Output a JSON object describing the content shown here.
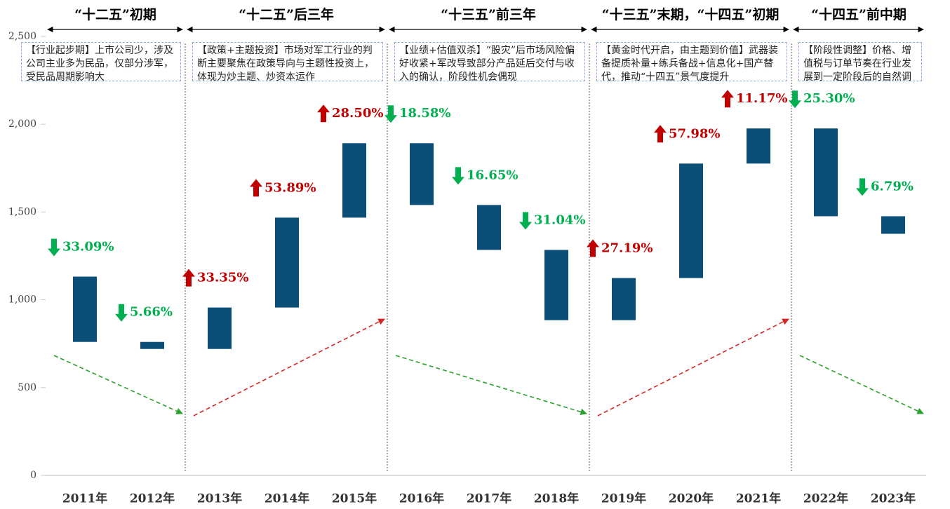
{
  "chart_data": {
    "type": "floating_bar",
    "color": "#0b4f79",
    "up_color": "#c00000",
    "down_color": "#00b050",
    "ylim": [
      0,
      2500
    ],
    "yticks": [
      0,
      500,
      {
        "value": 1000,
        "label": "1,000"
      },
      {
        "value": 1500,
        "label": "1,500"
      },
      {
        "value": 2000,
        "label": "2,000"
      },
      {
        "value": 2500,
        "label": "2,500"
      }
    ],
    "periods": [
      {
        "title": "“十二五”初期",
        "note": "【行业起步期】上市公司少，涉及公司主业多为民品，仅部分涉军，受民品周期影响大",
        "trend": "down",
        "categories": [
          "2011年",
          "2012年"
        ]
      },
      {
        "title": "“十二五”后三年",
        "note": "【政策+主题投资】市场对军工行业的判断主要聚焦在政策导向与主题性投资上，体现为炒主题、炒资本运作",
        "trend": "up",
        "categories": [
          "2013年",
          "2014年",
          "2015年"
        ]
      },
      {
        "title": "“十三五”前三年",
        "note": "【业绩+估值双杀】“股灾”后市场风险偏好收紧+军改导致部分产品延后交付与收入的确认，阶段性机会偶现",
        "trend": "down",
        "categories": [
          "2016年",
          "2017年",
          "2018年"
        ]
      },
      {
        "title": "“十三五”末期，“十四五”初期",
        "note": "【黄金时代开启，由主题到价值】武器装备提质补量+练兵备战+信息化+国产替代，推动“十四五”景气度提升",
        "trend": "up",
        "categories": [
          "2019年",
          "2020年",
          "2021年"
        ]
      },
      {
        "title": "“十四五”前中期",
        "note": "【阶段性调整】价格、增值税与订单节奏在行业发展到一定阶段后的自然调整",
        "trend": "down",
        "categories": [
          "2022年",
          "2023年"
        ]
      }
    ],
    "low": [
      760,
      720,
      720,
      956,
      1468,
      1540,
      1284,
      884,
      884,
      1124,
      1776,
      1476,
      1376
    ],
    "high": [
      1132,
      760,
      956,
      1468,
      1892,
      1892,
      1540,
      1284,
      1124,
      1776,
      1976,
      1976,
      1476
    ],
    "change_values": [
      33.09,
      5.66,
      33.35,
      53.89,
      28.5,
      18.58,
      16.65,
      31.04,
      27.19,
      57.98,
      11.17,
      25.3,
      6.79
    ],
    "change_labels": [
      "33.09%",
      "5.66%",
      "33.35%",
      "53.89%",
      "28.50%",
      "18.58%",
      "16.65%",
      "31.04%",
      "27.19%",
      "57.98%",
      "11.17%",
      "25.30%",
      "6.79%"
    ],
    "change_direction": [
      "down",
      "down",
      "up",
      "up",
      "up",
      "down",
      "down",
      "down",
      "up",
      "up",
      "up",
      "down",
      "down"
    ]
  }
}
